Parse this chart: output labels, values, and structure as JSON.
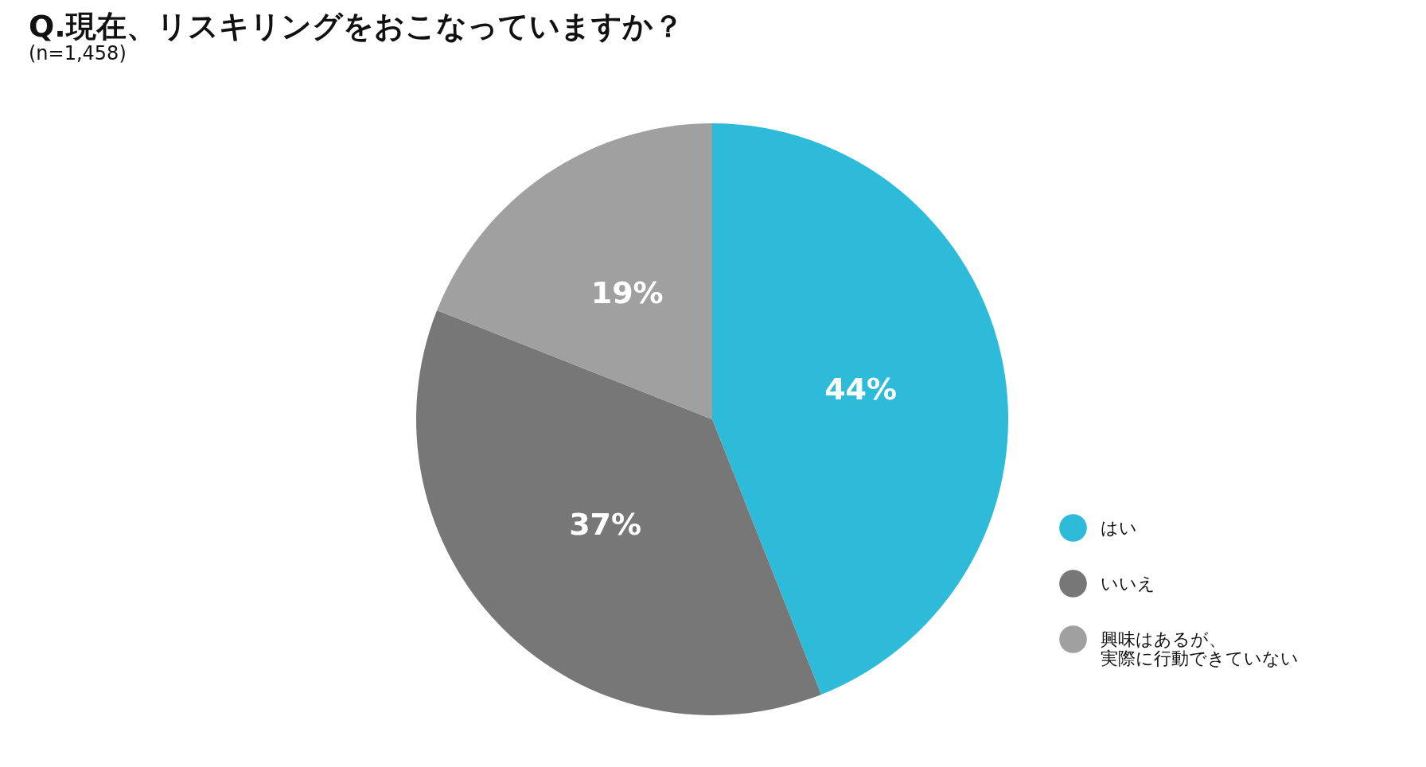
{
  "chart_data": {
    "type": "pie",
    "title": "Q.現在、リスキリングをおこなっていますか？",
    "subtitle": "(n=1,458)",
    "categories": [
      "はい",
      "いいえ",
      "興味はあるが、実際に行動できていない"
    ],
    "values": [
      44,
      37,
      19
    ],
    "colors": [
      "#2ebbd9",
      "#777777",
      "#a0a0a0"
    ],
    "value_labels": [
      "44%",
      "37%",
      "19%"
    ],
    "legend": "bottom right"
  }
}
